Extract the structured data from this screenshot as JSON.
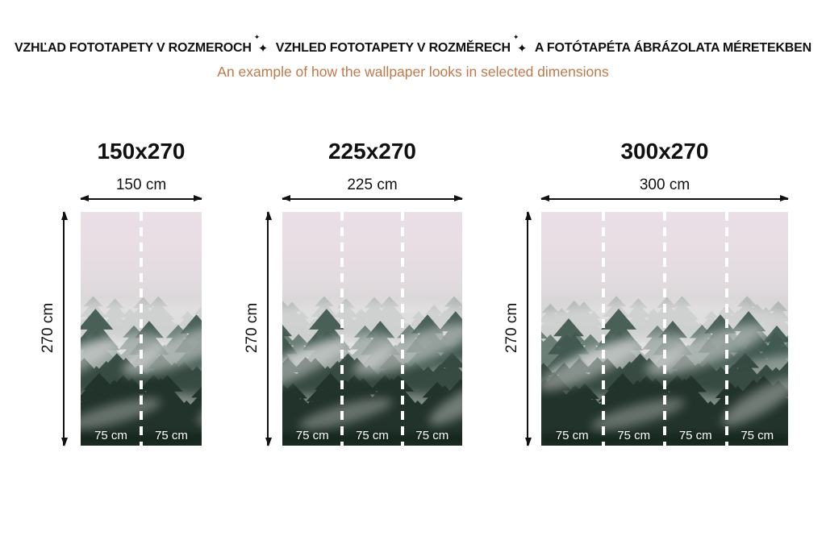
{
  "header": {
    "line1_parts": [
      "VZHĽAD FOTOTAPETY V ROZMEROCH",
      "VZHLED FOTOTAPETY V ROZMĚRECH",
      "A FOTÓTAPÉTA ÁBRÁZOLATA MÉRETEKBEN"
    ],
    "separator_icon": "sparkle-icon",
    "subtitle": "An example of how the wallpaper looks in selected dimensions",
    "subtitle_color": "#c0784b"
  },
  "artwork": {
    "description": "Misty coniferous forest wallpaper photo (foggy pine trees, pink-grey haze)",
    "palette": [
      "#e8dee4",
      "#bdc5c0",
      "#5b7168",
      "#34483f",
      "#22332b"
    ]
  },
  "panels": [
    {
      "title": "150x270",
      "width_label": "150 cm",
      "height_label": "270 cm",
      "segments": [
        "75 cm",
        "75 cm"
      ]
    },
    {
      "title": "225x270",
      "width_label": "225 cm",
      "height_label": "270 cm",
      "segments": [
        "75 cm",
        "75 cm",
        "75 cm"
      ]
    },
    {
      "title": "300x270",
      "width_label": "300 cm",
      "height_label": "270 cm",
      "segments": [
        "75 cm",
        "75 cm",
        "75 cm",
        "75 cm"
      ]
    }
  ]
}
